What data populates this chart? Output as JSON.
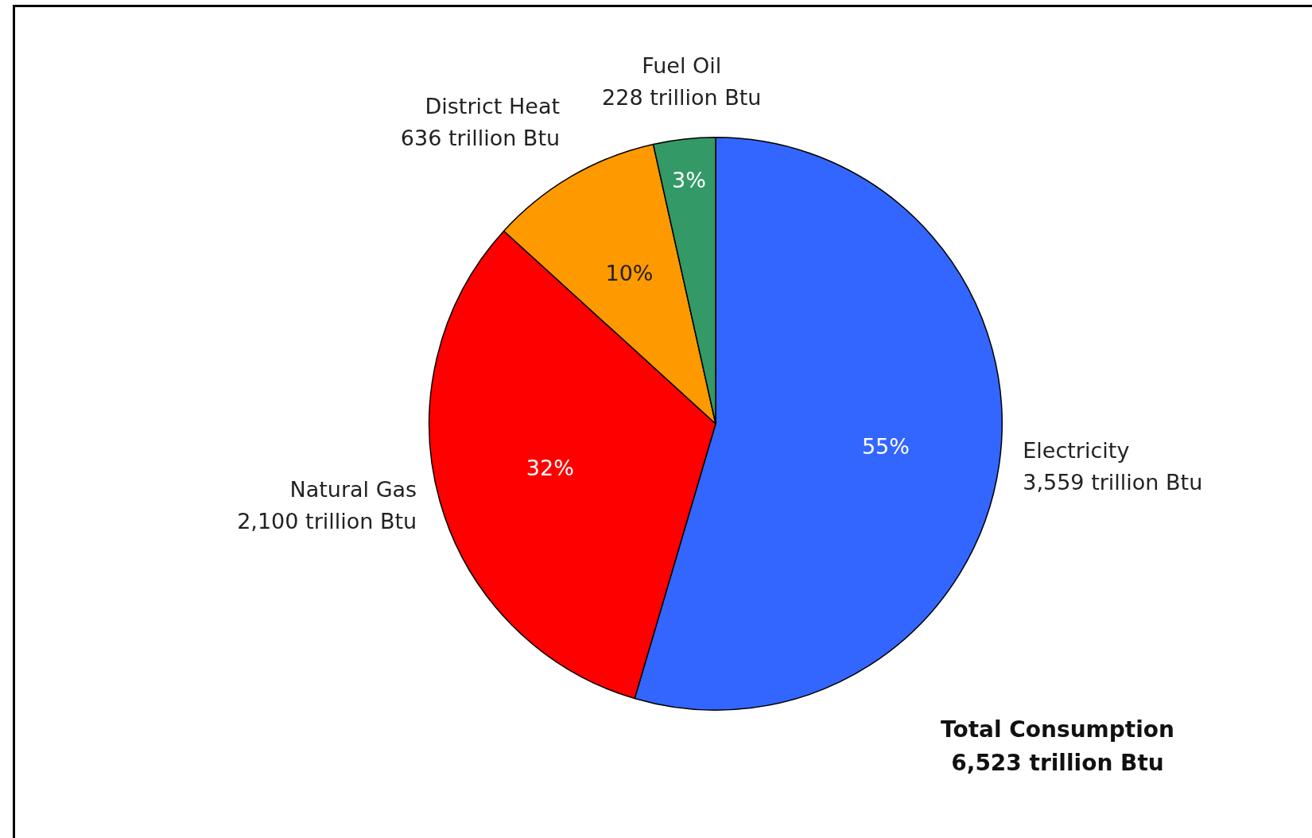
{
  "chart_data": {
    "type": "pie",
    "categories": [
      "Electricity",
      "Natural Gas",
      "District Heat",
      "Fuel Oil"
    ],
    "values": [
      3559,
      2100,
      636,
      228
    ],
    "colors": [
      "#3366ff",
      "#ff0000",
      "#ff9900",
      "#339966"
    ],
    "value_labels": [
      "3,559 trillion Btu",
      "2,100 trillion Btu",
      "636 trillion Btu",
      "228 trillion Btu"
    ],
    "annotations": [
      {
        "text": "55%",
        "x": "Electricity"
      },
      {
        "text": "32%",
        "x": "Natural Gas"
      },
      {
        "text": "10%",
        "x": "District Heat"
      },
      {
        "text": "3%",
        "x": "Fuel Oil"
      },
      "Total Consumption\n6,523 trillion Btu"
    ],
    "legend": false
  }
}
